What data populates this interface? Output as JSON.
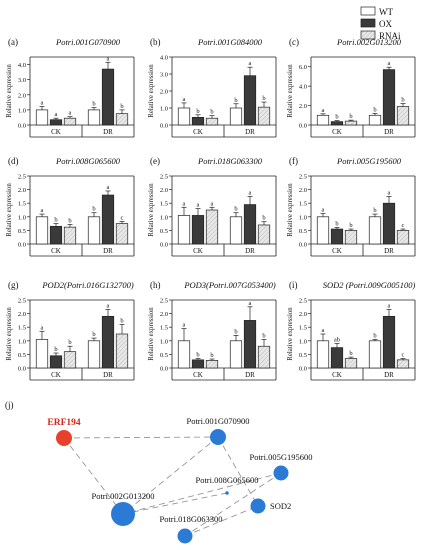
{
  "legend": {
    "entries": [
      {
        "name": "WT",
        "fill": "#ffffff"
      },
      {
        "name": "OX",
        "fill": "#3a3a3a"
      },
      {
        "name": "RNAi",
        "fill": "#e8e8e8"
      }
    ]
  },
  "colors": {
    "bar_wt": "#ffffff",
    "bar_ox": "#3a3a3a",
    "bar_rnai": "#e8e8e8",
    "erf": "#e8402a",
    "node": "#2b7bd6",
    "erf_label": "#d6261c"
  },
  "chart_data": [
    {
      "type": "bar",
      "panel": "(a)",
      "title": "Potri.001G070900",
      "ylabel": "Relative expression",
      "ylim": [
        0,
        4.5
      ],
      "yticks": [
        "0.0",
        "1.0",
        "2.0",
        "3.0",
        "4.0"
      ],
      "ytick_values": [
        0,
        1,
        2,
        3,
        4
      ],
      "groups": [
        "CK",
        "DR"
      ],
      "series": [
        {
          "name": "WT",
          "values": [
            1.0,
            1.0
          ],
          "errors": [
            0.22,
            0.15
          ],
          "letters": [
            "a",
            "b"
          ]
        },
        {
          "name": "OX",
          "values": [
            0.35,
            3.7
          ],
          "errors": [
            0.1,
            0.45
          ],
          "letters": [
            "a",
            "a"
          ]
        },
        {
          "name": "RNAi",
          "values": [
            0.45,
            0.75
          ],
          "errors": [
            0.1,
            0.25
          ],
          "letters": [
            "a",
            "b"
          ]
        }
      ]
    },
    {
      "type": "bar",
      "panel": "(b)",
      "title": "Potri.001G084000",
      "ylabel": "Relative expression",
      "ylim": [
        0,
        4.0
      ],
      "yticks": [
        "0.0",
        "1.0",
        "2.0",
        "3.0",
        "4.0"
      ],
      "ytick_values": [
        0,
        1,
        2,
        3,
        4
      ],
      "groups": [
        "CK",
        "DR"
      ],
      "series": [
        {
          "name": "WT",
          "values": [
            1.0,
            1.0
          ],
          "errors": [
            0.3,
            0.25
          ],
          "letters": [
            "a",
            "b"
          ]
        },
        {
          "name": "OX",
          "values": [
            0.45,
            2.9
          ],
          "errors": [
            0.15,
            0.5
          ],
          "letters": [
            "b",
            "a"
          ]
        },
        {
          "name": "RNAi",
          "values": [
            0.4,
            1.05
          ],
          "errors": [
            0.15,
            0.3
          ],
          "letters": [
            "b",
            "b"
          ]
        }
      ]
    },
    {
      "type": "bar",
      "panel": "(c)",
      "title": "Potri.002G013200",
      "ylabel": "Relative expression",
      "ylim": [
        0,
        7.0
      ],
      "yticks": [
        "0.0",
        "2.0",
        "4.0",
        "6.0"
      ],
      "ytick_values": [
        0,
        2,
        4,
        6
      ],
      "groups": [
        "CK",
        "DR"
      ],
      "series": [
        {
          "name": "WT",
          "values": [
            1.0,
            1.0
          ],
          "errors": [
            0.15,
            0.2
          ],
          "letters": [
            "a",
            "b"
          ]
        },
        {
          "name": "OX",
          "values": [
            0.35,
            5.7
          ],
          "errors": [
            0.1,
            0.25
          ],
          "letters": [
            "b",
            "a"
          ]
        },
        {
          "name": "RNAi",
          "values": [
            0.4,
            1.9
          ],
          "errors": [
            0.1,
            0.3
          ],
          "letters": [
            "b",
            "b"
          ]
        }
      ]
    },
    {
      "type": "bar",
      "panel": "(d)",
      "title": "Potri.008G065600",
      "ylabel": "Relative expression",
      "ylim": [
        0,
        2.5
      ],
      "yticks": [
        "0.0",
        "0.5",
        "1.0",
        "1.5",
        "2.0",
        "2.5"
      ],
      "ytick_values": [
        0,
        0.5,
        1,
        1.5,
        2,
        2.5
      ],
      "groups": [
        "CK",
        "DR"
      ],
      "series": [
        {
          "name": "WT",
          "values": [
            1.0,
            1.0
          ],
          "errors": [
            0.1,
            0.15
          ],
          "letters": [
            "a",
            "b"
          ]
        },
        {
          "name": "OX",
          "values": [
            0.65,
            1.8
          ],
          "errors": [
            0.1,
            0.15
          ],
          "letters": [
            "b",
            "a"
          ]
        },
        {
          "name": "RNAi",
          "values": [
            0.62,
            0.75
          ],
          "errors": [
            0.1,
            0.08
          ],
          "letters": [
            "b",
            "c"
          ]
        }
      ]
    },
    {
      "type": "bar",
      "panel": "(e)",
      "title": "Potri.018G063300",
      "ylabel": "Relative expression",
      "ylim": [
        0,
        2.5
      ],
      "yticks": [
        "0.0",
        "0.5",
        "1.0",
        "1.5",
        "2.0",
        "2.5"
      ],
      "ytick_values": [
        0,
        0.5,
        1,
        1.5,
        2,
        2.5
      ],
      "groups": [
        "CK",
        "DR"
      ],
      "series": [
        {
          "name": "WT",
          "values": [
            1.05,
            1.0
          ],
          "errors": [
            0.3,
            0.15
          ],
          "letters": [
            "a",
            "b"
          ]
        },
        {
          "name": "OX",
          "values": [
            1.05,
            1.45
          ],
          "errors": [
            0.25,
            0.3
          ],
          "letters": [
            "a",
            "a"
          ]
        },
        {
          "name": "RNAi",
          "values": [
            1.25,
            0.7
          ],
          "errors": [
            0.1,
            0.12
          ],
          "letters": [
            "a",
            "b"
          ]
        }
      ]
    },
    {
      "type": "bar",
      "panel": "(f)",
      "title": "Potri.005G195600",
      "ylabel": "Relative expression",
      "ylim": [
        0,
        2.5
      ],
      "yticks": [
        "0.0",
        "0.5",
        "1.0",
        "1.5",
        "2.0",
        "2.5"
      ],
      "ytick_values": [
        0,
        0.5,
        1,
        1.5,
        2,
        2.5
      ],
      "groups": [
        "CK",
        "DR"
      ],
      "series": [
        {
          "name": "WT",
          "values": [
            1.0,
            1.0
          ],
          "errors": [
            0.12,
            0.1
          ],
          "letters": [
            "a",
            "b"
          ]
        },
        {
          "name": "OX",
          "values": [
            0.55,
            1.5
          ],
          "errors": [
            0.06,
            0.25
          ],
          "letters": [
            "b",
            "a"
          ]
        },
        {
          "name": "RNAi",
          "values": [
            0.5,
            0.5
          ],
          "errors": [
            0.05,
            0.05
          ],
          "letters": [
            "b",
            "c"
          ]
        }
      ]
    },
    {
      "type": "bar",
      "panel": "(g)",
      "title": "POD2(Potri.016G132700)",
      "ylabel": "Relative expression",
      "ylim": [
        0,
        2.5
      ],
      "yticks": [
        "0.0",
        "0.5",
        "1.0",
        "1.5",
        "2.0",
        "2.5"
      ],
      "ytick_values": [
        0,
        0.5,
        1,
        1.5,
        2,
        2.5
      ],
      "groups": [
        "CK",
        "DR"
      ],
      "series": [
        {
          "name": "WT",
          "values": [
            1.05,
            1.0
          ],
          "errors": [
            0.3,
            0.1
          ],
          "letters": [
            "a",
            "b"
          ]
        },
        {
          "name": "OX",
          "values": [
            0.45,
            1.9
          ],
          "errors": [
            0.1,
            0.25
          ],
          "letters": [
            "b",
            "a"
          ]
        },
        {
          "name": "RNAi",
          "values": [
            0.6,
            1.25
          ],
          "errors": [
            0.2,
            0.35
          ],
          "letters": [
            "b",
            "b"
          ]
        }
      ]
    },
    {
      "type": "bar",
      "panel": "(h)",
      "title": "POD3(Potri.007G053400)",
      "ylabel": "Relative expression",
      "ylim": [
        0,
        2.5
      ],
      "yticks": [
        "0.0",
        "0.5",
        "1.0",
        "1.5",
        "2.0",
        "2.5"
      ],
      "ytick_values": [
        0,
        0.5,
        1,
        1.5,
        2,
        2.5
      ],
      "groups": [
        "CK",
        "DR"
      ],
      "series": [
        {
          "name": "WT",
          "values": [
            1.0,
            1.0
          ],
          "errors": [
            0.45,
            0.2
          ],
          "letters": [
            "a",
            "b"
          ]
        },
        {
          "name": "OX",
          "values": [
            0.3,
            1.75
          ],
          "errors": [
            0.05,
            0.5
          ],
          "letters": [
            "b",
            "a"
          ]
        },
        {
          "name": "RNAi",
          "values": [
            0.28,
            0.8
          ],
          "errors": [
            0.05,
            0.25
          ],
          "letters": [
            "b",
            "b"
          ]
        }
      ]
    },
    {
      "type": "bar",
      "panel": "(i)",
      "title": "SOD2 (Potri.009G005100)",
      "ylabel": "Relative expression",
      "ylim": [
        0,
        2.5
      ],
      "yticks": [
        "0.0",
        "0.5",
        "1.0",
        "1.5",
        "2.0",
        "2.5"
      ],
      "ytick_values": [
        0,
        0.5,
        1,
        1.5,
        2,
        2.5
      ],
      "groups": [
        "CK",
        "DR"
      ],
      "series": [
        {
          "name": "WT",
          "values": [
            1.0,
            1.0
          ],
          "errors": [
            0.25,
            0.05
          ],
          "letters": [
            "a",
            "b"
          ]
        },
        {
          "name": "OX",
          "values": [
            0.75,
            1.9
          ],
          "errors": [
            0.15,
            0.25
          ],
          "letters": [
            "ab",
            "a"
          ]
        },
        {
          "name": "RNAi",
          "values": [
            0.35,
            0.3
          ],
          "errors": [
            0.05,
            0.05
          ],
          "letters": [
            "b",
            "c"
          ]
        }
      ]
    }
  ],
  "network": {
    "panel": "(j)",
    "nodes": [
      {
        "id": "erf194",
        "label": "ERF194",
        "highlight": true
      },
      {
        "id": "g070900",
        "label": "Potri.001G070900"
      },
      {
        "id": "g195600",
        "label": "Potri.005G195600"
      },
      {
        "id": "g065600",
        "label": "Potri.008G065600"
      },
      {
        "id": "g013200",
        "label": "Potri.002G013200"
      },
      {
        "id": "sod2",
        "label": "SOD2"
      },
      {
        "id": "g063300",
        "label": "Potri.018G063300"
      }
    ],
    "edges": [
      [
        "erf194",
        "g070900"
      ],
      [
        "erf194",
        "g013200"
      ],
      [
        "g070900",
        "g013200"
      ],
      [
        "g070900",
        "sod2"
      ],
      [
        "g195600",
        "g013200"
      ],
      [
        "g195600",
        "g063300"
      ],
      [
        "g065600",
        "g013200"
      ],
      [
        "g063300",
        "sod2"
      ]
    ]
  }
}
